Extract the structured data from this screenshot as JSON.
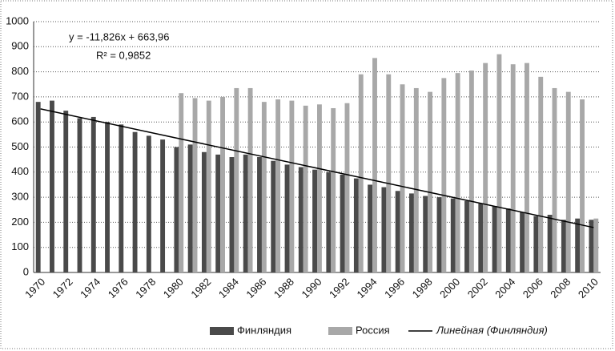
{
  "chart_data": {
    "type": "bar",
    "categories": [
      "1970",
      null,
      "1972",
      null,
      "1974",
      null,
      "1976",
      null,
      "1978",
      null,
      "1980",
      null,
      "1982",
      null,
      "1984",
      null,
      "1986",
      null,
      "1988",
      null,
      "1990",
      null,
      "1992",
      null,
      "1994",
      null,
      "1996",
      null,
      "1998",
      null,
      "2000",
      null,
      "2002",
      null,
      "2004",
      null,
      "2006",
      null,
      "2008",
      null,
      "2010"
    ],
    "series": [
      {
        "name": "Финляндия",
        "color": "#4a4a4a",
        "values": [
          680,
          685,
          645,
          615,
          620,
          600,
          590,
          560,
          545,
          530,
          500,
          510,
          480,
          470,
          460,
          470,
          460,
          445,
          430,
          420,
          410,
          400,
          390,
          375,
          350,
          340,
          325,
          315,
          305,
          300,
          295,
          285,
          275,
          265,
          255,
          240,
          225,
          230,
          210,
          215,
          210
        ]
      },
      {
        "name": "Россия",
        "color": "#a8a8a8",
        "values": [
          null,
          null,
          null,
          null,
          null,
          null,
          null,
          null,
          null,
          null,
          715,
          695,
          685,
          700,
          735,
          735,
          680,
          690,
          685,
          665,
          670,
          655,
          675,
          790,
          855,
          790,
          750,
          735,
          720,
          775,
          795,
          805,
          835,
          870,
          830,
          835,
          780,
          735,
          720,
          690,
          215
        ]
      }
    ],
    "trendline": {
      "name": "Линейная (Финляндия)",
      "color": "#000000",
      "slope": -11.826,
      "intercept": 663.96,
      "equation": "y = -11,826x + 663,96",
      "r2": "R² = 0,9852"
    },
    "ylim": [
      0,
      1000
    ],
    "yticks": [
      0,
      100,
      200,
      300,
      400,
      500,
      600,
      700,
      800,
      900,
      1000
    ],
    "grid": true
  }
}
